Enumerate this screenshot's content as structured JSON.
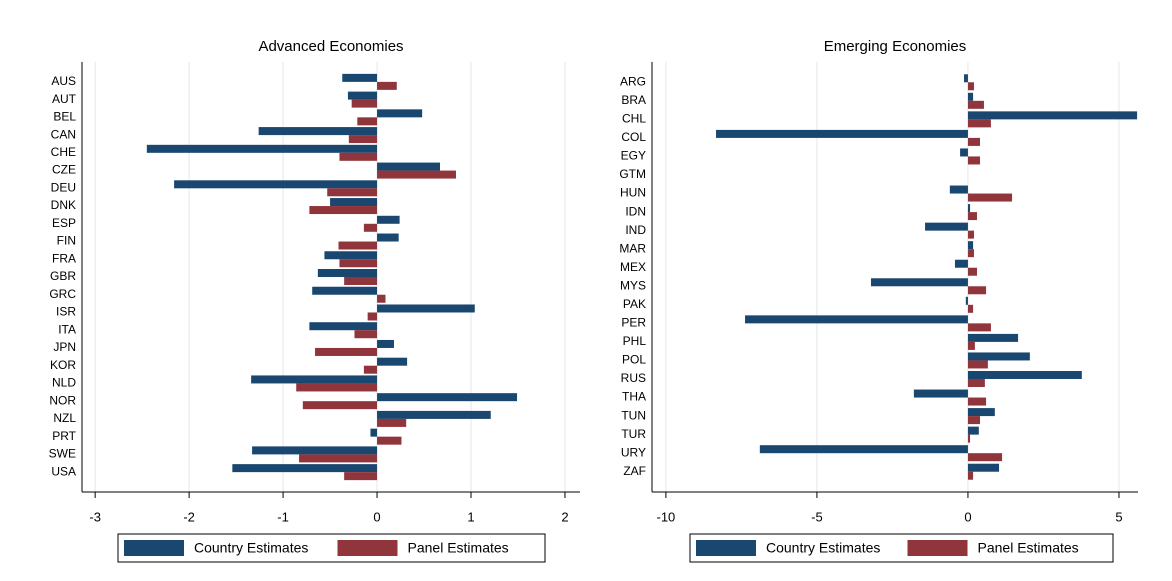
{
  "chart_data": [
    {
      "type": "bar",
      "orientation": "horizontal",
      "title": "Advanced Economies",
      "categories": [
        "AUS",
        "AUT",
        "BEL",
        "CAN",
        "CHE",
        "CZE",
        "DEU",
        "DNK",
        "ESP",
        "FIN",
        "FRA",
        "GBR",
        "GRC",
        "ISR",
        "ITA",
        "JPN",
        "KOR",
        "NLD",
        "NOR",
        "NZL",
        "PRT",
        "SWE",
        "USA"
      ],
      "series": [
        {
          "name": "Country Estimates",
          "color": "#1a476f",
          "values": [
            -0.37,
            -0.31,
            0.48,
            -1.26,
            -2.45,
            0.67,
            -2.16,
            -0.5,
            0.24,
            0.23,
            -0.56,
            -0.63,
            -0.69,
            1.04,
            -0.72,
            0.18,
            0.32,
            -1.34,
            1.49,
            1.21,
            -0.07,
            -1.33,
            -1.54
          ]
        },
        {
          "name": "Panel Estimates",
          "color": "#90353b",
          "values": [
            0.21,
            -0.27,
            -0.21,
            -0.3,
            -0.4,
            0.84,
            -0.53,
            -0.72,
            -0.14,
            -0.41,
            -0.4,
            -0.35,
            0.09,
            -0.1,
            -0.24,
            -0.66,
            -0.14,
            -0.86,
            -0.79,
            0.31,
            0.26,
            -0.83,
            -0.35
          ]
        }
      ],
      "xlim": [
        -3.14,
        2.16
      ],
      "xticks": [
        -3,
        -2,
        -1,
        0,
        1,
        2
      ],
      "grid": true,
      "legend": "bottom"
    },
    {
      "type": "bar",
      "orientation": "horizontal",
      "title": "Emerging Economies",
      "categories": [
        "ARG",
        "BRA",
        "CHL",
        "COL",
        "EGY",
        "GTM",
        "HUN",
        "IDN",
        "IND",
        "MAR",
        "MEX",
        "MYS",
        "PAK",
        "PER",
        "PHL",
        "POL",
        "RUS",
        "THA",
        "TUN",
        "TUR",
        "URY",
        "ZAF"
      ],
      "series": [
        {
          "name": "Country Estimates",
          "color": "#1a476f",
          "values": [
            -0.13,
            0.17,
            5.6,
            -8.34,
            -0.26,
            0,
            -0.6,
            0.07,
            -1.42,
            0.17,
            -0.43,
            -3.21,
            -0.07,
            -7.38,
            1.66,
            2.05,
            3.77,
            -1.79,
            0.89,
            0.36,
            -6.89,
            1.03
          ]
        },
        {
          "name": "Panel Estimates",
          "color": "#90353b",
          "values": [
            0.2,
            0.53,
            0.76,
            0.4,
            0.4,
            0,
            1.46,
            0.3,
            0.2,
            0.2,
            0.3,
            0.6,
            0.17,
            0.76,
            0.23,
            0.66,
            0.56,
            0.6,
            0.4,
            0.07,
            1.13,
            0.17
          ]
        }
      ],
      "xlim": [
        -10.46,
        5.63
      ],
      "xticks": [
        -10,
        -5,
        0,
        5
      ],
      "grid": true,
      "legend": "bottom"
    }
  ]
}
